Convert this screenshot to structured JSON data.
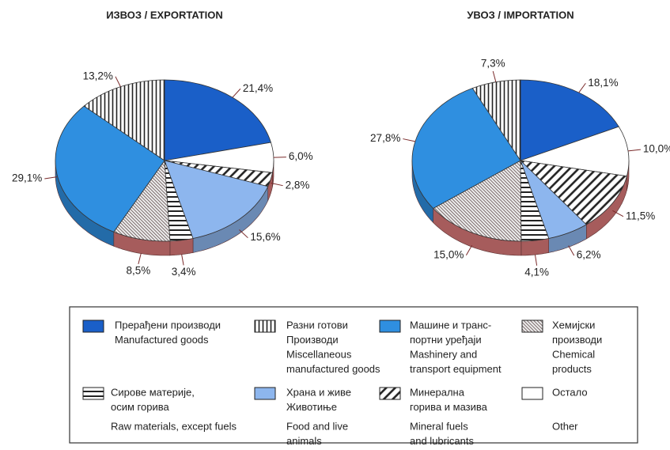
{
  "chart_data": [
    {
      "type": "pie",
      "title": "ИЗВОЗ / EXPORTATION",
      "values": [
        21.4,
        6.0,
        2.8,
        15.6,
        3.4,
        8.5,
        29.1,
        13.2
      ],
      "value_labels": [
        "21,4%",
        "6,0%",
        "2,8%",
        "15,6%",
        "3,4%",
        "8,5%",
        "29,1%",
        "13,2%"
      ],
      "colors": [
        "#1a5fc8",
        "#ffffff",
        "diag",
        "#8db6ee",
        "hstripe",
        "hatch",
        "#2f8fe0",
        "vstripe"
      ]
    },
    {
      "type": "pie",
      "title": "УВОЗ /  IMPORTATION",
      "values": [
        18.1,
        10.0,
        11.5,
        6.2,
        4.1,
        15.0,
        27.8,
        7.3
      ],
      "value_labels": [
        "18,1%",
        "10,0%",
        "11,5%",
        "6,2%",
        "4,1%",
        "15,0%",
        "27,8%",
        "7,3%"
      ],
      "colors": [
        "#1a5fc8",
        "#ffffff",
        "diag",
        "#8db6ee",
        "hstripe",
        "hatch",
        "#2f8fe0",
        "vstripe"
      ]
    }
  ],
  "legend": {
    "items": [
      {
        "fill": "#1a5fc8",
        "sr": [
          "Прерађени производи"
        ],
        "en": [
          "Manufactured goods"
        ]
      },
      {
        "fill": "vstripe",
        "sr": [
          "Разни готови",
          "Производи"
        ],
        "en": [
          "Miscellaneous",
          "manufactured goods"
        ]
      },
      {
        "fill": "#2f8fe0",
        "sr": [
          "Машине и транс-",
          "портни уређаји"
        ],
        "en": [
          "Mashinery and",
          "transport equipment"
        ]
      },
      {
        "fill": "hatch",
        "sr": [
          "Хемијски",
          "производи"
        ],
        "en": [
          "Chemical",
          "products"
        ]
      },
      {
        "fill": "hstripe",
        "sr": [
          "Сирове материје,",
          "осим горива"
        ],
        "en": [
          "Raw materials, except fuels"
        ]
      },
      {
        "fill": "#8db6ee",
        "sr": [
          "Храна и живе",
          "Животиње"
        ],
        "en": [
          "Food and live",
          "animals"
        ]
      },
      {
        "fill": "diag",
        "sr": [
          "Минерална",
          "горива и мазива"
        ],
        "en": [
          "Mineral fuels",
          "and lubricants"
        ]
      },
      {
        "fill": "#ffffff",
        "sr": [
          "Остало"
        ],
        "en": [
          "Other"
        ]
      }
    ]
  }
}
